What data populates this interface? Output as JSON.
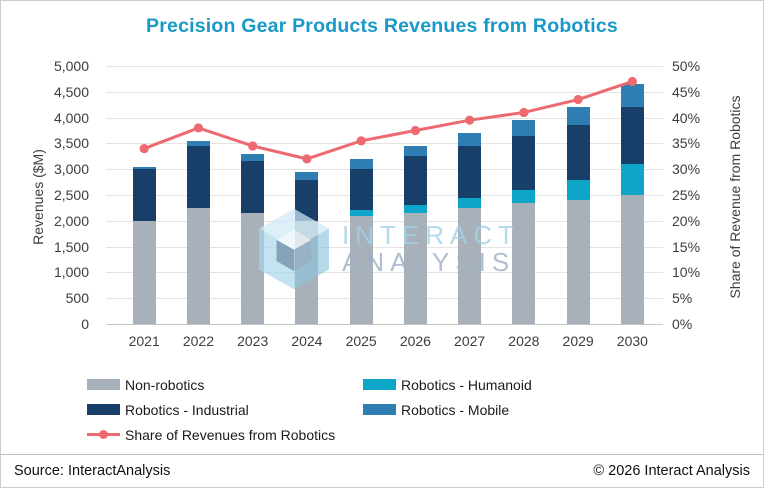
{
  "title": "Precision Gear Products Revenues from Robotics",
  "chart_data": {
    "type": "combo-stacked-bar-line",
    "categories": [
      "2021",
      "2022",
      "2023",
      "2024",
      "2025",
      "2026",
      "2027",
      "2028",
      "2029",
      "2030"
    ],
    "series": [
      {
        "name": "Non-robotics",
        "color": "#a8b1b9",
        "values": [
          2000,
          2250,
          2150,
          2000,
          2100,
          2150,
          2250,
          2350,
          2400,
          2500
        ]
      },
      {
        "name": "Robotics - Humanoid",
        "color": "#0da5c8",
        "values": [
          0,
          0,
          0,
          0,
          100,
          150,
          200,
          250,
          400,
          600
        ]
      },
      {
        "name": "Robotics - Industrial",
        "color": "#173f6a",
        "values": [
          1000,
          1200,
          1000,
          800,
          800,
          950,
          1000,
          1050,
          1050,
          1100
        ]
      },
      {
        "name": "Robotics - Mobile",
        "color": "#2e7eb3",
        "values": [
          50,
          100,
          150,
          150,
          200,
          200,
          250,
          300,
          350,
          450
        ]
      }
    ],
    "line_series": {
      "name": "Share of Revenues from Robotics",
      "color": "#ec6a70",
      "axis": "right",
      "values_percent": [
        34,
        38,
        34.5,
        32,
        35.5,
        37.5,
        39.5,
        41,
        43.5,
        47
      ]
    },
    "xlabel": "",
    "ylabel_left": "Revenues ($M)",
    "ylabel_right": "Share of Revenue from Robotics",
    "ylim_left": [
      0,
      5000
    ],
    "yticks_left": [
      "5,000",
      "4,500",
      "4,000",
      "3,500",
      "3,000",
      "2,500",
      "2,000",
      "1,500",
      "1,000",
      "500",
      "0"
    ],
    "ylim_right": [
      0,
      50
    ],
    "yticks_right": [
      "50%",
      "45%",
      "40%",
      "35%",
      "30%",
      "25%",
      "20%",
      "15%",
      "10%",
      "5%",
      "0%"
    ],
    "grid": true,
    "legend_position": "bottom"
  },
  "legend": {
    "items": [
      {
        "label": "Non-robotics"
      },
      {
        "label": "Robotics - Industrial"
      },
      {
        "label": "Share of Revenues from Robotics"
      },
      {
        "label": "Robotics - Humanoid"
      },
      {
        "label": "Robotics - Mobile"
      }
    ]
  },
  "watermark": {
    "line1": "INTERACT",
    "line2": "ANALYSIS"
  },
  "footer": {
    "source": "Source: InteractAnalysis",
    "copyright": "© 2026 Interact Analysis"
  }
}
